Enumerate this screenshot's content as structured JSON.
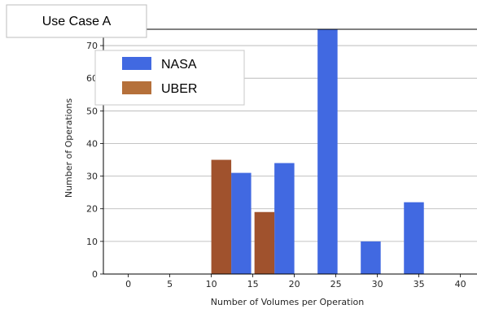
{
  "chart_data": {
    "type": "bar",
    "title": "Use Case A",
    "xlabel": "Number of Volumes per Operation",
    "ylabel": "Number of Operations",
    "xlim": [
      -3,
      42
    ],
    "ylim": [
      0,
      75
    ],
    "xticks": [
      0,
      5,
      10,
      15,
      20,
      25,
      30,
      35,
      40
    ],
    "yticks": [
      0,
      10,
      20,
      30,
      40,
      50,
      60,
      70
    ],
    "grid": "horizontal",
    "legend_position": "top-left",
    "bar_width": 2.4,
    "series": [
      {
        "name": "NASA",
        "color": "#4169e1",
        "points": [
          {
            "x": 13.6,
            "y": 31
          },
          {
            "x": 18.8,
            "y": 34
          },
          {
            "x": 24,
            "y": 75
          },
          {
            "x": 29.2,
            "y": 10
          },
          {
            "x": 34.4,
            "y": 22
          }
        ]
      },
      {
        "name": "UBER",
        "color": "#a0522d",
        "points": [
          {
            "x": 11.2,
            "y": 35
          },
          {
            "x": 16.4,
            "y": 19
          }
        ]
      }
    ]
  }
}
